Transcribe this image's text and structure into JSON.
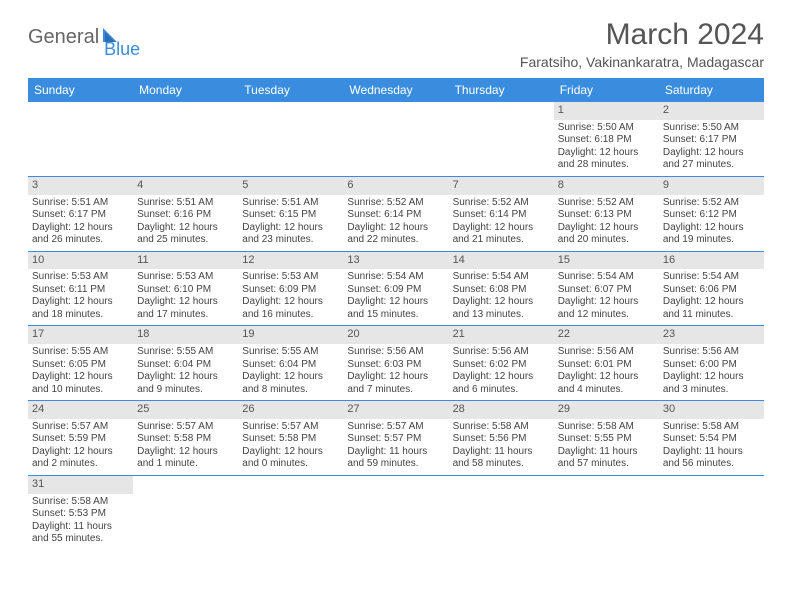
{
  "logo": {
    "text1": "General",
    "text2": "Blue"
  },
  "title": "March 2024",
  "subtitle": "Faratsiho, Vakinankaratra, Madagascar",
  "colors": {
    "header_bg": "#3a8dde",
    "header_text": "#ffffff",
    "daynum_bg": "#e6e6e6",
    "border": "#3a8dde",
    "background": "#ffffff",
    "text": "#444444"
  },
  "day_labels": [
    "Sunday",
    "Monday",
    "Tuesday",
    "Wednesday",
    "Thursday",
    "Friday",
    "Saturday"
  ],
  "weeks": [
    [
      null,
      null,
      null,
      null,
      null,
      {
        "n": "1",
        "sr": "Sunrise: 5:50 AM",
        "ss": "Sunset: 6:18 PM",
        "d1": "Daylight: 12 hours",
        "d2": "and 28 minutes."
      },
      {
        "n": "2",
        "sr": "Sunrise: 5:50 AM",
        "ss": "Sunset: 6:17 PM",
        "d1": "Daylight: 12 hours",
        "d2": "and 27 minutes."
      }
    ],
    [
      {
        "n": "3",
        "sr": "Sunrise: 5:51 AM",
        "ss": "Sunset: 6:17 PM",
        "d1": "Daylight: 12 hours",
        "d2": "and 26 minutes."
      },
      {
        "n": "4",
        "sr": "Sunrise: 5:51 AM",
        "ss": "Sunset: 6:16 PM",
        "d1": "Daylight: 12 hours",
        "d2": "and 25 minutes."
      },
      {
        "n": "5",
        "sr": "Sunrise: 5:51 AM",
        "ss": "Sunset: 6:15 PM",
        "d1": "Daylight: 12 hours",
        "d2": "and 23 minutes."
      },
      {
        "n": "6",
        "sr": "Sunrise: 5:52 AM",
        "ss": "Sunset: 6:14 PM",
        "d1": "Daylight: 12 hours",
        "d2": "and 22 minutes."
      },
      {
        "n": "7",
        "sr": "Sunrise: 5:52 AM",
        "ss": "Sunset: 6:14 PM",
        "d1": "Daylight: 12 hours",
        "d2": "and 21 minutes."
      },
      {
        "n": "8",
        "sr": "Sunrise: 5:52 AM",
        "ss": "Sunset: 6:13 PM",
        "d1": "Daylight: 12 hours",
        "d2": "and 20 minutes."
      },
      {
        "n": "9",
        "sr": "Sunrise: 5:52 AM",
        "ss": "Sunset: 6:12 PM",
        "d1": "Daylight: 12 hours",
        "d2": "and 19 minutes."
      }
    ],
    [
      {
        "n": "10",
        "sr": "Sunrise: 5:53 AM",
        "ss": "Sunset: 6:11 PM",
        "d1": "Daylight: 12 hours",
        "d2": "and 18 minutes."
      },
      {
        "n": "11",
        "sr": "Sunrise: 5:53 AM",
        "ss": "Sunset: 6:10 PM",
        "d1": "Daylight: 12 hours",
        "d2": "and 17 minutes."
      },
      {
        "n": "12",
        "sr": "Sunrise: 5:53 AM",
        "ss": "Sunset: 6:09 PM",
        "d1": "Daylight: 12 hours",
        "d2": "and 16 minutes."
      },
      {
        "n": "13",
        "sr": "Sunrise: 5:54 AM",
        "ss": "Sunset: 6:09 PM",
        "d1": "Daylight: 12 hours",
        "d2": "and 15 minutes."
      },
      {
        "n": "14",
        "sr": "Sunrise: 5:54 AM",
        "ss": "Sunset: 6:08 PM",
        "d1": "Daylight: 12 hours",
        "d2": "and 13 minutes."
      },
      {
        "n": "15",
        "sr": "Sunrise: 5:54 AM",
        "ss": "Sunset: 6:07 PM",
        "d1": "Daylight: 12 hours",
        "d2": "and 12 minutes."
      },
      {
        "n": "16",
        "sr": "Sunrise: 5:54 AM",
        "ss": "Sunset: 6:06 PM",
        "d1": "Daylight: 12 hours",
        "d2": "and 11 minutes."
      }
    ],
    [
      {
        "n": "17",
        "sr": "Sunrise: 5:55 AM",
        "ss": "Sunset: 6:05 PM",
        "d1": "Daylight: 12 hours",
        "d2": "and 10 minutes."
      },
      {
        "n": "18",
        "sr": "Sunrise: 5:55 AM",
        "ss": "Sunset: 6:04 PM",
        "d1": "Daylight: 12 hours",
        "d2": "and 9 minutes."
      },
      {
        "n": "19",
        "sr": "Sunrise: 5:55 AM",
        "ss": "Sunset: 6:04 PM",
        "d1": "Daylight: 12 hours",
        "d2": "and 8 minutes."
      },
      {
        "n": "20",
        "sr": "Sunrise: 5:56 AM",
        "ss": "Sunset: 6:03 PM",
        "d1": "Daylight: 12 hours",
        "d2": "and 7 minutes."
      },
      {
        "n": "21",
        "sr": "Sunrise: 5:56 AM",
        "ss": "Sunset: 6:02 PM",
        "d1": "Daylight: 12 hours",
        "d2": "and 6 minutes."
      },
      {
        "n": "22",
        "sr": "Sunrise: 5:56 AM",
        "ss": "Sunset: 6:01 PM",
        "d1": "Daylight: 12 hours",
        "d2": "and 4 minutes."
      },
      {
        "n": "23",
        "sr": "Sunrise: 5:56 AM",
        "ss": "Sunset: 6:00 PM",
        "d1": "Daylight: 12 hours",
        "d2": "and 3 minutes."
      }
    ],
    [
      {
        "n": "24",
        "sr": "Sunrise: 5:57 AM",
        "ss": "Sunset: 5:59 PM",
        "d1": "Daylight: 12 hours",
        "d2": "and 2 minutes."
      },
      {
        "n": "25",
        "sr": "Sunrise: 5:57 AM",
        "ss": "Sunset: 5:58 PM",
        "d1": "Daylight: 12 hours",
        "d2": "and 1 minute."
      },
      {
        "n": "26",
        "sr": "Sunrise: 5:57 AM",
        "ss": "Sunset: 5:58 PM",
        "d1": "Daylight: 12 hours",
        "d2": "and 0 minutes."
      },
      {
        "n": "27",
        "sr": "Sunrise: 5:57 AM",
        "ss": "Sunset: 5:57 PM",
        "d1": "Daylight: 11 hours",
        "d2": "and 59 minutes."
      },
      {
        "n": "28",
        "sr": "Sunrise: 5:58 AM",
        "ss": "Sunset: 5:56 PM",
        "d1": "Daylight: 11 hours",
        "d2": "and 58 minutes."
      },
      {
        "n": "29",
        "sr": "Sunrise: 5:58 AM",
        "ss": "Sunset: 5:55 PM",
        "d1": "Daylight: 11 hours",
        "d2": "and 57 minutes."
      },
      {
        "n": "30",
        "sr": "Sunrise: 5:58 AM",
        "ss": "Sunset: 5:54 PM",
        "d1": "Daylight: 11 hours",
        "d2": "and 56 minutes."
      }
    ],
    [
      {
        "n": "31",
        "sr": "Sunrise: 5:58 AM",
        "ss": "Sunset: 5:53 PM",
        "d1": "Daylight: 11 hours",
        "d2": "and 55 minutes."
      },
      null,
      null,
      null,
      null,
      null,
      null
    ]
  ]
}
